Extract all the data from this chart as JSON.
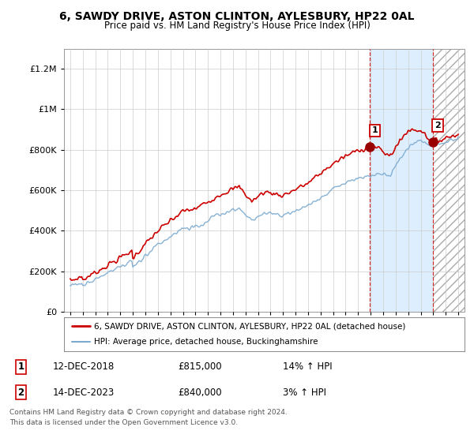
{
  "title": "6, SAWDY DRIVE, ASTON CLINTON, AYLESBURY, HP22 0AL",
  "subtitle": "Price paid vs. HM Land Registry's House Price Index (HPI)",
  "footer": "Contains HM Land Registry data © Crown copyright and database right 2024.\nThis data is licensed under the Open Government Licence v3.0.",
  "legend_line1": "6, SAWDY DRIVE, ASTON CLINTON, AYLESBURY, HP22 0AL (detached house)",
  "legend_line2": "HPI: Average price, detached house, Buckinghamshire",
  "sale1_date": "12-DEC-2018",
  "sale1_price": "£815,000",
  "sale1_hpi": "14% ↑ HPI",
  "sale2_date": "14-DEC-2023",
  "sale2_price": "£840,000",
  "sale2_hpi": "3% ↑ HPI",
  "red_color": "#cc0000",
  "blue_color": "#7aaad0",
  "shade_color": "#ddeeff",
  "hatch_color": "#cccccc",
  "ylim": [
    0,
    1300000
  ],
  "yticks": [
    0,
    200000,
    400000,
    600000,
    800000,
    1000000,
    1200000
  ],
  "ytick_labels": [
    "£0",
    "£200K",
    "£400K",
    "£600K",
    "£800K",
    "£1M",
    "£1.2M"
  ],
  "sale1_year": 2018.92,
  "sale1_value": 815000,
  "sale2_year": 2023.95,
  "sale2_value": 840000,
  "xmin": 1995,
  "xmax": 2026
}
